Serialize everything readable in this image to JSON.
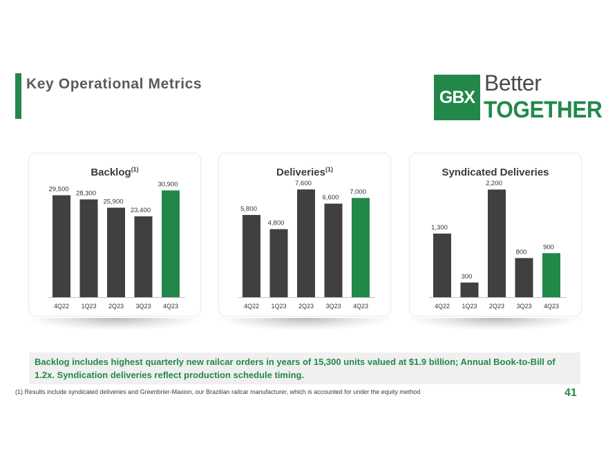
{
  "page": {
    "title": "Key Operational Metrics",
    "page_number": "41",
    "footnote": "(1) Results include syndicated deliveries and Greenbrier-Maxion, our Brazilian railcar manufacturer, which is accounted for under the equity method",
    "callout": "Backlog includes highest quarterly new railcar orders in years of 15,300 units valued at $1.9 billion; Annual Book-to-Bill of 1.2x. Syndication deliveries reflect production schedule timing."
  },
  "logo": {
    "mark": "GBX",
    "line1": "Better",
    "line2": "TOGETHER"
  },
  "colors": {
    "accent": "#22884a",
    "bar_dark": "#404040",
    "text_gray": "#5a5a5a"
  },
  "chart_data": [
    {
      "type": "bar",
      "title": "Backlog",
      "title_sup": "(1)",
      "categories": [
        "4Q22",
        "1Q23",
        "2Q23",
        "3Q23",
        "4Q23"
      ],
      "values": [
        29500,
        28300,
        25900,
        23400,
        30900
      ],
      "labels": [
        "29,500",
        "28,300",
        "25,900",
        "23,400",
        "30,900"
      ],
      "highlight_index": 4,
      "ylim": [
        0,
        32000
      ]
    },
    {
      "type": "bar",
      "title": "Deliveries",
      "title_sup": "(1)",
      "categories": [
        "4Q22",
        "1Q23",
        "2Q23",
        "3Q23",
        "4Q23"
      ],
      "values": [
        5800,
        4800,
        7600,
        6600,
        7000
      ],
      "labels": [
        "5,800",
        "4,800",
        "7,600",
        "6,600",
        "7,000"
      ],
      "highlight_index": 4,
      "ylim": [
        0,
        7800
      ]
    },
    {
      "type": "bar",
      "title": "Syndicated Deliveries",
      "title_sup": "",
      "categories": [
        "4Q22",
        "1Q23",
        "2Q23",
        "3Q23",
        "4Q23"
      ],
      "values": [
        1300,
        300,
        2200,
        800,
        900
      ],
      "labels": [
        "1,300",
        "300",
        "2,200",
        "800",
        "900"
      ],
      "highlight_index": 4,
      "ylim": [
        0,
        2260
      ]
    }
  ]
}
